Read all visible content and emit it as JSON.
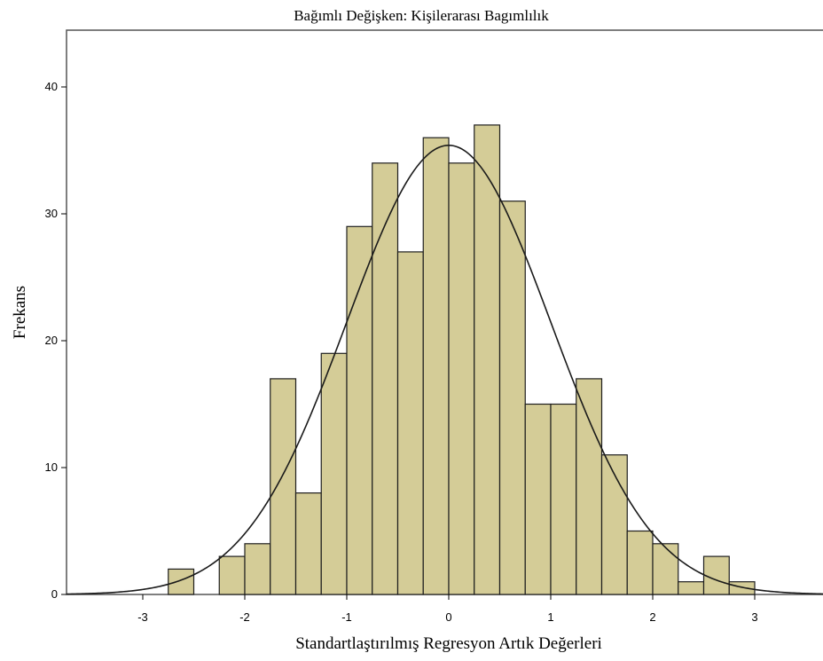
{
  "chart_data": {
    "type": "bar",
    "title": "Bağımlı Değişken: Kişilerarası Bagımlılık",
    "xlabel": "Standartlaştırılmış Regresyon Artık Değerleri",
    "ylabel": "Frekans",
    "xlim": [
      -3.75,
      3.75
    ],
    "ylim": [
      0,
      44
    ],
    "x_ticks": [
      -3,
      -2,
      -1,
      0,
      1,
      2,
      3
    ],
    "y_ticks": [
      0,
      10,
      20,
      30,
      40
    ],
    "bin_width": 0.25,
    "bins": [
      {
        "start": -2.75,
        "value": 2
      },
      {
        "start": -2.25,
        "value": 3
      },
      {
        "start": -2.0,
        "value": 4
      },
      {
        "start": -1.75,
        "value": 17
      },
      {
        "start": -1.5,
        "value": 8
      },
      {
        "start": -1.25,
        "value": 19
      },
      {
        "start": -1.0,
        "value": 29
      },
      {
        "start": -0.75,
        "value": 34
      },
      {
        "start": -0.5,
        "value": 27
      },
      {
        "start": -0.25,
        "value": 36
      },
      {
        "start": 0.0,
        "value": 34
      },
      {
        "start": 0.25,
        "value": 37
      },
      {
        "start": 0.5,
        "value": 31
      },
      {
        "start": 0.75,
        "value": 15
      },
      {
        "start": 1.0,
        "value": 15
      },
      {
        "start": 1.25,
        "value": 17
      },
      {
        "start": 1.5,
        "value": 11
      },
      {
        "start": 1.75,
        "value": 5
      },
      {
        "start": 2.0,
        "value": 4
      },
      {
        "start": 2.25,
        "value": 1
      },
      {
        "start": 2.5,
        "value": 3
      },
      {
        "start": 2.75,
        "value": 1
      }
    ],
    "normal_curve": {
      "mean": 0,
      "sd": 1,
      "peak": 35.4
    },
    "grid": false,
    "colors": {
      "bar_fill": "#d4cc97",
      "bar_stroke": "#1e1e1e",
      "curve": "#1a1a1a"
    }
  }
}
